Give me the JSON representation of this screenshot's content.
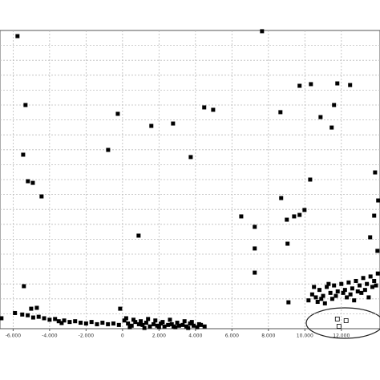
{
  "chart_data": {
    "type": "scatter",
    "xlim": [
      -6.72,
      14.12
    ],
    "xticks": [
      {
        "value": -6,
        "label": "-6.000"
      },
      {
        "value": -4,
        "label": "-4.000"
      },
      {
        "value": -2,
        "label": "-2.000"
      },
      0,
      {
        "value": 2,
        "label": "2.000"
      },
      {
        "value": 4,
        "label": "4.000"
      },
      {
        "value": 6,
        "label": "6.000"
      },
      {
        "value": 8,
        "label": "8.000"
      },
      {
        "value": 10,
        "label": "10.000"
      },
      {
        "value": 12,
        "label": "12.000"
      }
    ],
    "ylim": [
      0,
      20
    ],
    "yticks": [
      1,
      2,
      3,
      4,
      5,
      6,
      7,
      8,
      9,
      10,
      11,
      12,
      13,
      14,
      15,
      16,
      17,
      18,
      19
    ],
    "grid": true,
    "series": [
      {
        "color": "#000000",
        "marker": "filled-square",
        "x": [
          -5.76,
          7.65,
          -5.32,
          -0.26,
          1.58,
          2.77,
          4.48,
          4.97,
          9.71,
          10.33,
          11.78,
          12.48,
          10.86,
          11.47,
          11.6,
          8.66,
          3.74,
          -5.45,
          -5.19,
          -4.92,
          -4.44,
          -0.79,
          6.51,
          7.25,
          0.88,
          8.7,
          9.98,
          9.71,
          10.29,
          9.41,
          9.01,
          7.25,
          7.25,
          9.05,
          9.1,
          -5.41,
          -5.01,
          -4.7,
          -6.64,
          -3.34,
          -0.13,
          13.85,
          13.8,
          13.58,
          13.98,
          14.02,
          -5.9,
          -5.5,
          -5.2,
          -4.9,
          -4.6,
          -4.3,
          -4.0,
          -3.7,
          -3.5,
          -3.2,
          -2.9,
          -2.6,
          -2.3,
          -2.0,
          -1.7,
          -1.4,
          -1.1,
          -0.8,
          -0.5,
          -0.2,
          0.1,
          0.3,
          0.5,
          0.7,
          0.9,
          1.1,
          1.3,
          1.5,
          1.7,
          1.9,
          2.1,
          2.3,
          2.5,
          2.7,
          2.9,
          3.1,
          3.3,
          3.5,
          3.7,
          3.9,
          4.1,
          4.3,
          4.5,
          0.2,
          0.6,
          1.0,
          1.4,
          1.8,
          2.2,
          2.6,
          3.0,
          3.4,
          3.8,
          4.2,
          0.4,
          1.2,
          2.0,
          2.8,
          3.6,
          10.2,
          10.4,
          10.6,
          10.8,
          11.0,
          11.2,
          11.4,
          11.6,
          11.8,
          12.0,
          12.2,
          12.4,
          12.6,
          12.8,
          13.0,
          13.2,
          13.4,
          13.6,
          13.8,
          14.0,
          10.5,
          10.9,
          11.3,
          11.7,
          12.1,
          12.5,
          12.9,
          13.3,
          13.7,
          10.7,
          11.5,
          12.3,
          13.1,
          13.9,
          11.1,
          12.7,
          13.5
        ],
        "values": [
          19.62,
          19.95,
          15.0,
          14.41,
          13.6,
          13.76,
          14.84,
          14.68,
          16.29,
          16.4,
          16.45,
          16.34,
          14.19,
          13.49,
          15.0,
          14.52,
          11.51,
          11.67,
          9.89,
          9.78,
          8.87,
          11.99,
          7.53,
          6.83,
          6.24,
          8.76,
          7.96,
          7.63,
          10.0,
          7.53,
          7.31,
          5.38,
          3.76,
          5.7,
          1.77,
          2.85,
          1.34,
          1.4,
          0.7,
          0.38,
          1.34,
          10.48,
          7.58,
          6.13,
          5.22,
          8.6,
          1.05,
          0.95,
          0.9,
          0.75,
          0.8,
          0.7,
          0.6,
          0.65,
          0.5,
          0.55,
          0.45,
          0.5,
          0.4,
          0.35,
          0.45,
          0.3,
          0.4,
          0.3,
          0.35,
          0.25,
          0.55,
          0.35,
          0.2,
          0.45,
          0.3,
          0.25,
          0.4,
          0.15,
          0.3,
          0.2,
          0.35,
          0.15,
          0.25,
          0.3,
          0.1,
          0.2,
          0.25,
          0.15,
          0.35,
          0.2,
          0.1,
          0.25,
          0.15,
          0.7,
          0.6,
          0.5,
          0.65,
          0.55,
          0.45,
          0.6,
          0.4,
          0.5,
          0.45,
          0.3,
          0.1,
          0.05,
          0.1,
          0.15,
          0.05,
          1.9,
          2.3,
          2.1,
          2.6,
          2.2,
          2.8,
          2.4,
          2.9,
          2.5,
          3.0,
          2.6,
          3.1,
          2.7,
          3.2,
          2.9,
          3.4,
          3.0,
          3.5,
          3.2,
          3.7,
          2.8,
          2.0,
          3.0,
          2.2,
          2.4,
          2.3,
          2.5,
          2.6,
          2.8,
          1.8,
          2.0,
          2.1,
          2.4,
          2.9,
          1.7,
          1.9,
          2.1
        ]
      },
      {
        "color": "#000000",
        "marker": "open-square",
        "x": [
          11.78,
          12.26,
          11.87
        ],
        "values": [
          0.65,
          0.54,
          0.16
        ]
      }
    ]
  }
}
